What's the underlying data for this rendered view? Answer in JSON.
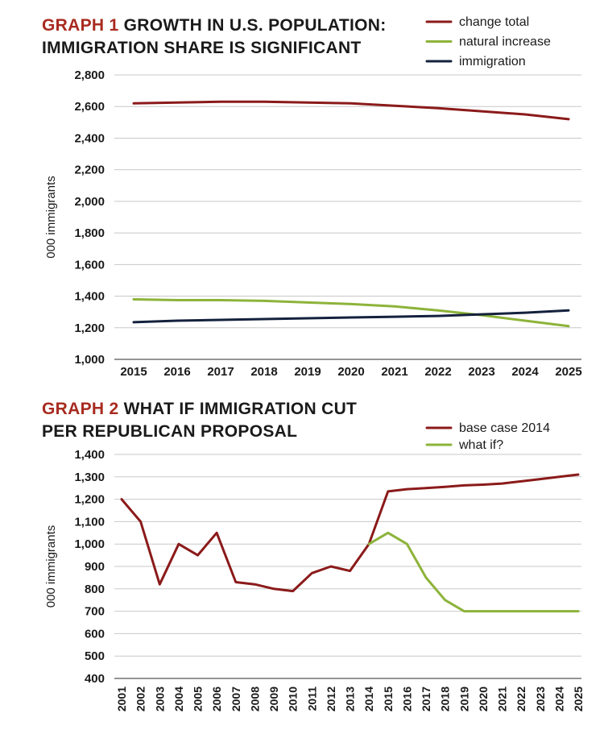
{
  "chart_data": [
    {
      "type": "line",
      "title_tag": "GRAPH 1",
      "title_line1": "GROWTH IN U.S. POPULATION:",
      "title_line2": "IMMIGRATION SHARE IS SIGNIFICANT",
      "ylabel": "000 immigrants",
      "xlabel": "",
      "ylim": [
        1000,
        2800
      ],
      "yticks": [
        1000,
        1200,
        1400,
        1600,
        1800,
        2000,
        2200,
        2400,
        2600,
        2800
      ],
      "ytick_labels": [
        "1,000",
        "1,200",
        "1,400",
        "1,600",
        "1,800",
        "2,000",
        "2,200",
        "2,400",
        "2,600",
        "2,800"
      ],
      "x": [
        "2015",
        "2016",
        "2017",
        "2018",
        "2019",
        "2020",
        "2021",
        "2022",
        "2023",
        "2024",
        "2025"
      ],
      "legend_position": "top-right",
      "series": [
        {
          "name": "change total",
          "color": "#8b1a1a",
          "values": [
            2620,
            2625,
            2630,
            2630,
            2625,
            2620,
            2605,
            2590,
            2570,
            2550,
            2520
          ]
        },
        {
          "name": "natural increase",
          "color": "#8db33a",
          "values": [
            1380,
            1375,
            1375,
            1370,
            1360,
            1350,
            1335,
            1310,
            1280,
            1245,
            1210
          ]
        },
        {
          "name": "immigration",
          "color": "#14213d",
          "values": [
            1235,
            1245,
            1250,
            1255,
            1260,
            1265,
            1270,
            1275,
            1285,
            1295,
            1310
          ]
        }
      ]
    },
    {
      "type": "line",
      "title_tag": "GRAPH 2",
      "title_line1": "WHAT IF IMMIGRATION CUT",
      "title_line2": "PER REPUBLICAN PROPOSAL",
      "ylabel": "000 immigrants",
      "xlabel": "",
      "ylim": [
        400,
        1400
      ],
      "yticks": [
        400,
        500,
        600,
        700,
        800,
        900,
        1000,
        1100,
        1200,
        1300,
        1400
      ],
      "ytick_labels": [
        "400",
        "500",
        "600",
        "700",
        "800",
        "900",
        "1,000",
        "1,100",
        "1,200",
        "1,300",
        "1,400"
      ],
      "x": [
        "2001",
        "2002",
        "2003",
        "2004",
        "2005",
        "2006",
        "2007",
        "2008",
        "2009",
        "2010",
        "2011",
        "2012",
        "2013",
        "2014",
        "2015",
        "2016",
        "2017",
        "2018",
        "2019",
        "2020",
        "2021",
        "2022",
        "2023",
        "2024",
        "2025"
      ],
      "legend_position": "top-right",
      "series": [
        {
          "name": "base case 2014",
          "color": "#8b1a1a",
          "values": [
            1200,
            1100,
            820,
            1000,
            950,
            1050,
            830,
            820,
            800,
            790,
            870,
            900,
            880,
            1000,
            1235,
            1245,
            1250,
            1255,
            1262,
            1265,
            1270,
            1280,
            1290,
            1300,
            1310
          ]
        },
        {
          "name": "what if?",
          "color": "#8db33a",
          "values": [
            null,
            null,
            null,
            null,
            null,
            null,
            null,
            null,
            null,
            null,
            null,
            null,
            null,
            1000,
            1050,
            1000,
            850,
            750,
            700,
            700,
            700,
            700,
            700,
            700,
            700
          ]
        }
      ]
    }
  ]
}
